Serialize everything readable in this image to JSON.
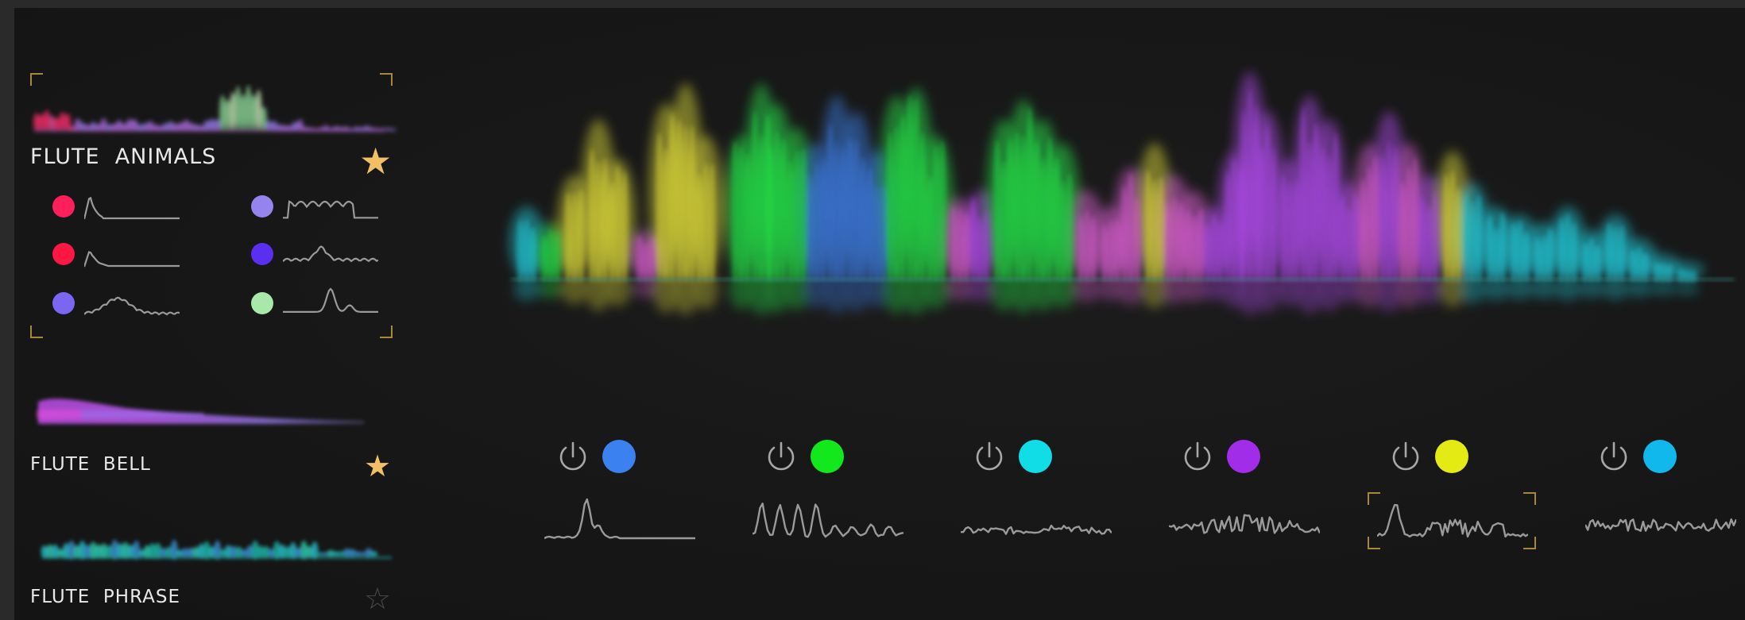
{
  "library": {
    "presets": [
      {
        "name": "FLUTE  ANIMALS",
        "favorite": true,
        "selected": true,
        "star_icon": "star-filled-icon",
        "layers": [
          {
            "color": "#ff1f5a",
            "envelope": "sharp-attack"
          },
          {
            "color": "#ff1744",
            "envelope": "sharp-attack-low"
          },
          {
            "color": "#7b66f2",
            "envelope": "swell"
          },
          {
            "color": "#9684ee",
            "envelope": "plateau"
          },
          {
            "color": "#5b2ff0",
            "envelope": "mid-peak"
          },
          {
            "color": "#a8e8a8",
            "envelope": "late-peak"
          }
        ]
      },
      {
        "name": "FLUTE  BELL",
        "favorite": true,
        "selected": false,
        "star_icon": "star-filled-icon"
      },
      {
        "name": "FLUTE  PHRASE",
        "favorite": false,
        "selected": false,
        "star_icon": "star-outline-icon"
      }
    ]
  },
  "visualizer": {
    "colors": {
      "yellow": "#e6e23a",
      "green": "#24e84a",
      "blue": "#3d7fe8",
      "purple": "#b24cf0",
      "cyan": "#22d4e4",
      "pink": "#e060d8"
    }
  },
  "channels": [
    {
      "color": "#3b82f0",
      "enabled": true,
      "selected": false,
      "power_icon": "power-icon",
      "envelope": "single-peak"
    },
    {
      "color": "#12e81c",
      "enabled": true,
      "selected": false,
      "power_icon": "power-icon",
      "envelope": "multi-peak"
    },
    {
      "color": "#10dde6",
      "enabled": true,
      "selected": false,
      "power_icon": "power-icon",
      "envelope": "low-noise"
    },
    {
      "color": "#a22de8",
      "enabled": true,
      "selected": false,
      "power_icon": "power-icon",
      "envelope": "dense-peaks"
    },
    {
      "color": "#e4ea14",
      "enabled": true,
      "selected": true,
      "power_icon": "power-icon",
      "envelope": "spiky"
    },
    {
      "color": "#10b8ec",
      "enabled": true,
      "selected": false,
      "power_icon": "power-icon",
      "envelope": "flat-noise"
    }
  ]
}
